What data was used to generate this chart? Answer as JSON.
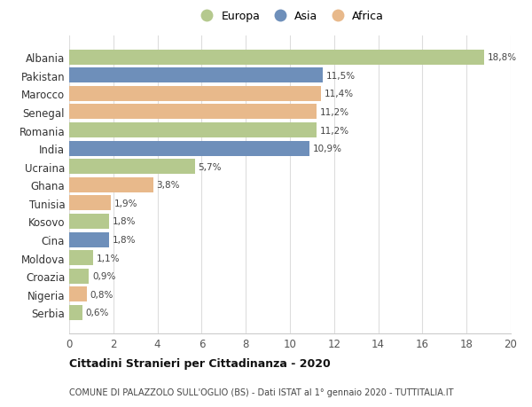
{
  "countries": [
    "Albania",
    "Pakistan",
    "Marocco",
    "Senegal",
    "Romania",
    "India",
    "Ucraina",
    "Ghana",
    "Tunisia",
    "Kosovo",
    "Cina",
    "Moldova",
    "Croazia",
    "Nigeria",
    "Serbia"
  ],
  "values": [
    18.8,
    11.5,
    11.4,
    11.2,
    11.2,
    10.9,
    5.7,
    3.8,
    1.9,
    1.8,
    1.8,
    1.1,
    0.9,
    0.8,
    0.6
  ],
  "labels": [
    "18,8%",
    "11,5%",
    "11,4%",
    "11,2%",
    "11,2%",
    "10,9%",
    "5,7%",
    "3,8%",
    "1,9%",
    "1,8%",
    "1,8%",
    "1,1%",
    "0,9%",
    "0,8%",
    "0,6%"
  ],
  "continents": [
    "Europa",
    "Asia",
    "Africa",
    "Africa",
    "Europa",
    "Asia",
    "Europa",
    "Africa",
    "Africa",
    "Europa",
    "Asia",
    "Europa",
    "Europa",
    "Africa",
    "Europa"
  ],
  "colors": {
    "Europa": "#b5c98e",
    "Asia": "#6e8fba",
    "Africa": "#e8b98b"
  },
  "title_bold": "Cittadini Stranieri per Cittadinanza - 2020",
  "subtitle": "COMUNE DI PALAZZOLO SULL'OGLIO (BS) - Dati ISTAT al 1° gennaio 2020 - TUTTITALIA.IT",
  "xlim": [
    0,
    20
  ],
  "xticks": [
    0,
    2,
    4,
    6,
    8,
    10,
    12,
    14,
    16,
    18,
    20
  ],
  "background_color": "#ffffff",
  "grid_color": "#dddddd"
}
